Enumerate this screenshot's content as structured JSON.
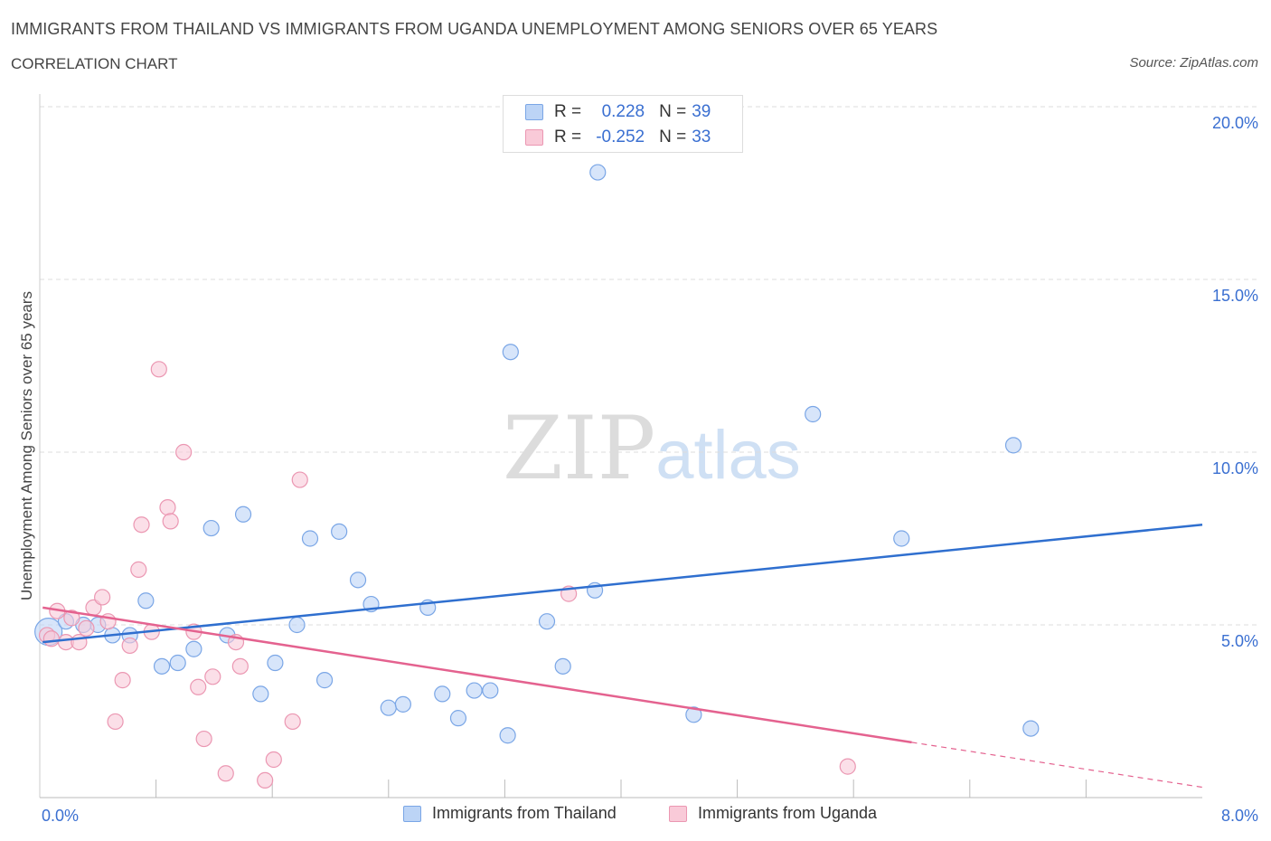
{
  "title": "IMMIGRANTS FROM THAILAND VS IMMIGRANTS FROM UGANDA UNEMPLOYMENT AMONG SENIORS OVER 65 YEARS",
  "subtitle": "CORRELATION CHART",
  "source": "Source: ZipAtlas.com",
  "watermark": {
    "zip": "ZIP",
    "atlas": "atlas"
  },
  "legend_stats": [
    {
      "r_label": "R =",
      "r_value": "0.228",
      "n_label": "N =",
      "n_value": "39"
    },
    {
      "r_label": "R =",
      "r_value": "-0.252",
      "n_label": "N =",
      "n_value": "33"
    }
  ],
  "colors": {
    "thailand_fill": "#bcd4f6",
    "thailand_stroke": "#7aa6e6",
    "thailand_line": "#2f6fcf",
    "uganda_fill": "#f9cad8",
    "uganda_stroke": "#eb97b2",
    "uganda_line": "#e4628f",
    "tick_label": "#3a6fd1",
    "grid": "#dddddd"
  },
  "chart_data": {
    "type": "scatter",
    "title": "IMMIGRANTS FROM THAILAND VS IMMIGRANTS FROM UGANDA UNEMPLOYMENT AMONG SENIORS OVER 65 YEARS",
    "xlabel": "",
    "ylabel": "Unemployment Among Seniors over 65 years",
    "xlim": [
      0,
      8
    ],
    "ylim": [
      0,
      20
    ],
    "x_tick_labels": [
      {
        "value": 0,
        "label": "0.0%"
      },
      {
        "value": 8,
        "label": "8.0%"
      }
    ],
    "x_minor_ticks": [
      0.8,
      1.6,
      2.4,
      3.2,
      4.0,
      4.8,
      5.6,
      6.4,
      7.2
    ],
    "y_ticks": [
      {
        "value": 5,
        "label": "5.0%"
      },
      {
        "value": 10,
        "label": "10.0%"
      },
      {
        "value": 15,
        "label": "15.0%"
      },
      {
        "value": 20,
        "label": "20.0%"
      }
    ],
    "series": [
      {
        "name": "Immigrants from Thailand",
        "points": [
          {
            "x": 0.06,
            "y": 4.8,
            "big": true
          },
          {
            "x": 0.18,
            "y": 5.1
          },
          {
            "x": 0.4,
            "y": 5.0
          },
          {
            "x": 0.5,
            "y": 4.7
          },
          {
            "x": 0.62,
            "y": 4.7
          },
          {
            "x": 0.73,
            "y": 5.7
          },
          {
            "x": 0.84,
            "y": 3.8
          },
          {
            "x": 0.95,
            "y": 3.9
          },
          {
            "x": 1.06,
            "y": 4.3
          },
          {
            "x": 1.18,
            "y": 7.8
          },
          {
            "x": 1.29,
            "y": 4.7
          },
          {
            "x": 1.4,
            "y": 8.2
          },
          {
            "x": 1.52,
            "y": 3.0
          },
          {
            "x": 1.62,
            "y": 3.9
          },
          {
            "x": 1.77,
            "y": 5.0
          },
          {
            "x": 1.86,
            "y": 7.5
          },
          {
            "x": 1.96,
            "y": 3.4
          },
          {
            "x": 2.06,
            "y": 7.7
          },
          {
            "x": 2.19,
            "y": 6.3
          },
          {
            "x": 2.28,
            "y": 5.6
          },
          {
            "x": 2.4,
            "y": 2.6
          },
          {
            "x": 2.5,
            "y": 2.7
          },
          {
            "x": 2.67,
            "y": 5.5
          },
          {
            "x": 2.77,
            "y": 3.0
          },
          {
            "x": 2.88,
            "y": 2.3
          },
          {
            "x": 2.99,
            "y": 3.1
          },
          {
            "x": 3.1,
            "y": 3.1
          },
          {
            "x": 3.22,
            "y": 1.8
          },
          {
            "x": 3.24,
            "y": 12.9
          },
          {
            "x": 3.49,
            "y": 5.1
          },
          {
            "x": 3.6,
            "y": 3.8
          },
          {
            "x": 3.82,
            "y": 6.0
          },
          {
            "x": 3.84,
            "y": 18.1
          },
          {
            "x": 4.5,
            "y": 2.4
          },
          {
            "x": 5.32,
            "y": 11.1
          },
          {
            "x": 5.93,
            "y": 7.5
          },
          {
            "x": 6.7,
            "y": 10.2
          },
          {
            "x": 6.82,
            "y": 2.0
          },
          {
            "x": 0.3,
            "y": 5.0
          }
        ],
        "trend": {
          "x0": 0.02,
          "y0": 4.5,
          "x1": 8.0,
          "y1": 7.9
        }
      },
      {
        "name": "Immigrants from Uganda",
        "points": [
          {
            "x": 0.05,
            "y": 4.7
          },
          {
            "x": 0.12,
            "y": 5.4
          },
          {
            "x": 0.18,
            "y": 4.5
          },
          {
            "x": 0.22,
            "y": 5.2
          },
          {
            "x": 0.27,
            "y": 4.5
          },
          {
            "x": 0.32,
            "y": 4.9
          },
          {
            "x": 0.37,
            "y": 5.5
          },
          {
            "x": 0.43,
            "y": 5.8
          },
          {
            "x": 0.47,
            "y": 5.1
          },
          {
            "x": 0.52,
            "y": 2.2
          },
          {
            "x": 0.57,
            "y": 3.4
          },
          {
            "x": 0.62,
            "y": 4.4
          },
          {
            "x": 0.68,
            "y": 6.6
          },
          {
            "x": 0.7,
            "y": 7.9
          },
          {
            "x": 0.77,
            "y": 4.8
          },
          {
            "x": 0.82,
            "y": 12.4
          },
          {
            "x": 0.88,
            "y": 8.4
          },
          {
            "x": 0.9,
            "y": 8.0
          },
          {
            "x": 0.99,
            "y": 10.0
          },
          {
            "x": 1.06,
            "y": 4.8
          },
          {
            "x": 1.09,
            "y": 3.2
          },
          {
            "x": 1.13,
            "y": 1.7
          },
          {
            "x": 1.19,
            "y": 3.5
          },
          {
            "x": 1.28,
            "y": 0.7
          },
          {
            "x": 1.35,
            "y": 4.5
          },
          {
            "x": 1.38,
            "y": 3.8
          },
          {
            "x": 1.55,
            "y": 0.5
          },
          {
            "x": 1.61,
            "y": 1.1
          },
          {
            "x": 1.74,
            "y": 2.2
          },
          {
            "x": 1.79,
            "y": 9.2
          },
          {
            "x": 3.64,
            "y": 5.9
          },
          {
            "x": 5.56,
            "y": 0.9
          },
          {
            "x": 0.08,
            "y": 4.6
          }
        ],
        "trend": {
          "x0": 0.02,
          "y0": 5.5,
          "x1": 6.0,
          "y1": 1.6
        },
        "trend_dashed": {
          "x0": 6.0,
          "y0": 1.6,
          "x1": 8.0,
          "y1": 0.3
        }
      }
    ]
  }
}
